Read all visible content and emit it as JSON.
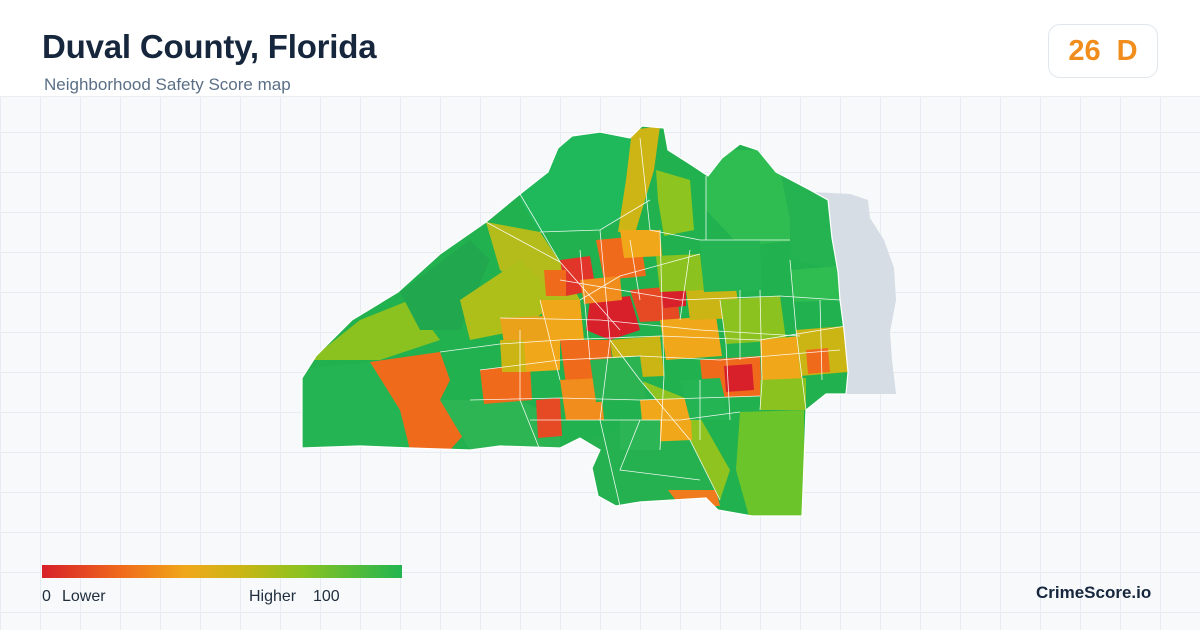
{
  "header": {
    "title": "Duval County, Florida",
    "subtitle": "Neighborhood Safety Score map"
  },
  "score": {
    "value": "26",
    "grade": "D",
    "color": "#f08d1c"
  },
  "legend": {
    "min_label": "0",
    "low_label": "Lower",
    "high_label": "Higher",
    "max_label": "100",
    "colors": [
      "#d7202a",
      "#f06a1b",
      "#f0a81a",
      "#cbb515",
      "#8cc21f",
      "#22b550"
    ]
  },
  "map": {
    "type": "choropleth",
    "region": "Duval County, Florida",
    "metric": "Safety Score",
    "scale": [
      0,
      100
    ],
    "water_color": "#d6dde5",
    "border_color": "#ffffff"
  },
  "brand": {
    "name": "CrimeScore.io"
  }
}
